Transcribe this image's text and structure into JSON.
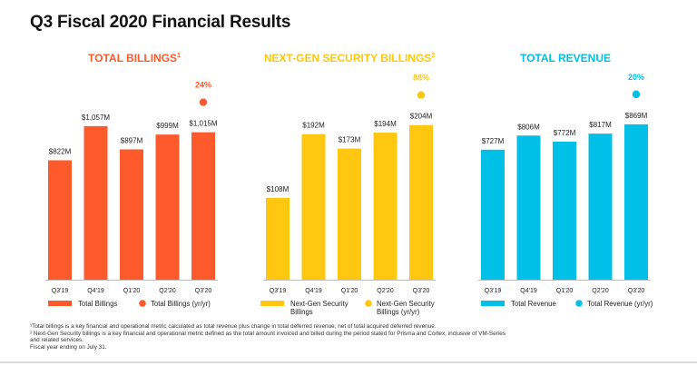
{
  "slide": {
    "title": "Q3 Fiscal 2020 Financial Results"
  },
  "colors": {
    "axis": "#bfbfbf",
    "text": "#222222"
  },
  "chart_data": [
    {
      "type": "bar",
      "title": "TOTAL BILLINGS",
      "title_superscript": "1",
      "color": "#FF5A2C",
      "categories": [
        "Q3'19",
        "Q4'19",
        "Q1'20",
        "Q2'20",
        "Q3'20"
      ],
      "values": [
        822,
        1057,
        897,
        999,
        1015
      ],
      "value_labels": [
        "$822M",
        "$1,057M",
        "$897M",
        "$999M",
        "$1,015M"
      ],
      "ylim": [
        0,
        1200
      ],
      "growth": {
        "category": "Q3'20",
        "label": "24%"
      },
      "legend": [
        {
          "shape": "bar",
          "label": "Total Billings"
        },
        {
          "shape": "dot",
          "label": "Total Billings (yr/yr)"
        }
      ]
    },
    {
      "type": "bar",
      "title": "NEXT-GEN SECURITY BILLINGS",
      "title_superscript": "2",
      "color": "#FFC70F",
      "categories": [
        "Q3'19",
        "Q4'19",
        "Q1'20",
        "Q2'20",
        "Q3'20"
      ],
      "values": [
        108,
        192,
        173,
        194,
        204
      ],
      "value_labels": [
        "$108M",
        "$192M",
        "$173M",
        "$194M",
        "$204M"
      ],
      "ylim": [
        0,
        230
      ],
      "growth": {
        "category": "Q3'20",
        "label": "88%"
      },
      "legend": [
        {
          "shape": "bar",
          "label": "Next-Gen Security Billings"
        },
        {
          "shape": "dot",
          "label": "Next-Gen Security Billings (yr/yr)"
        }
      ]
    },
    {
      "type": "bar",
      "title": "TOTAL REVENUE",
      "title_superscript": "",
      "color": "#00C0E8",
      "categories": [
        "Q3'19",
        "Q4'19",
        "Q1'20",
        "Q2'20",
        "Q3'20"
      ],
      "values": [
        727,
        806,
        772,
        817,
        869
      ],
      "value_labels": [
        "$727M",
        "$806M",
        "$772M",
        "$817M",
        "$869M"
      ],
      "ylim": [
        0,
        975
      ],
      "growth": {
        "category": "Q3'20",
        "label": "20%"
      },
      "legend": [
        {
          "shape": "bar",
          "label": "Total Revenue"
        },
        {
          "shape": "dot",
          "label": "Total Revenue (yr/yr)"
        }
      ]
    }
  ],
  "footnotes": [
    "¹Total billings is a key financial and operational metric calculated as total revenue plus change in total deferred revenue, net of total acquired deferred revenue.",
    "² Next-Gen Security billings is a key financial and operational metric defined as the total amount invoiced and billed during the period stated for Prisma and Cortex, inclusive of VM-Series",
    "and related services.",
    "Fiscal year ending on July 31."
  ]
}
